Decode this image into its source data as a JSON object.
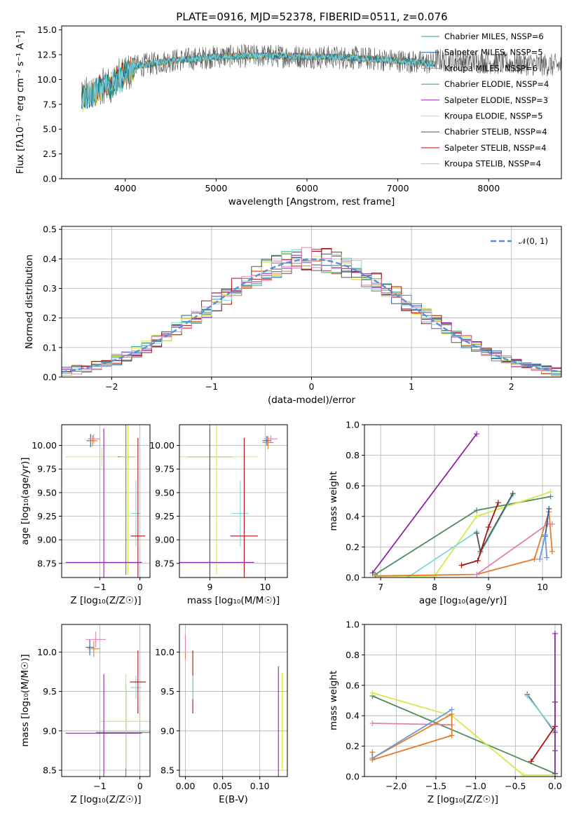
{
  "figure": {
    "title": "PLATE=0916, MJD=52378, FIBERID=0511, z=0.076"
  },
  "colors": {
    "Chabrier MILES": "#2a9d9d",
    "Salpeter MILES": "#1f5ea8",
    "Kroupa MILES": "#e37c2b",
    "Chabrier ELODIE": "#4f8b5e",
    "Salpeter ELODIE": "#8e24aa",
    "Kroupa ELODIE": "#d4ea4b",
    "Chabrier STELIB": "#555555",
    "Salpeter STELIB": "#aa1111",
    "Kroupa STELIB": "#7fd6dc",
    "gaussian": "#5b8fd6",
    "pink": "#e37fb0",
    "steelblue": "#6a9bd8"
  },
  "chart_data": [
    {
      "id": "spectrum",
      "type": "line",
      "title": "PLATE=0916, MJD=52378, FIBERID=0511, z=0.076",
      "xlabel": "wavelength [Angstrom, rest frame]",
      "ylabel": "Flux [fλ10⁻¹⁷ erg cm⁻² s⁻¹ A⁻¹]",
      "xlim": [
        3300,
        8800
      ],
      "ylim": [
        0,
        15.4
      ],
      "xticks": [
        "4000",
        "5000",
        "6000",
        "7000",
        "8000"
      ],
      "yticks": [
        "0.0",
        "2.5",
        "5.0",
        "7.5",
        "10.0",
        "12.5",
        "15.0"
      ],
      "legend_position": "right",
      "legend": [
        "Chabrier MILES, NSSP=6",
        "Salpeter MILES, NSSP=5",
        "Kroupa MILES, NSSP=6",
        "Chabrier ELODIE, NSSP=4",
        "Salpeter ELODIE, NSSP=3",
        "Kroupa ELODIE, NSSP=5",
        "Chabrier STELIB, NSSP=4",
        "Salpeter STELIB, NSSP=4",
        "Kroupa STELIB, NSSP=4"
      ],
      "continuum": {
        "x": [
          3550,
          3700,
          3900,
          4100,
          4500,
          5000,
          5500,
          6000,
          6500,
          7000,
          7400
        ],
        "y": [
          8.2,
          9.0,
          9.8,
          11.3,
          11.9,
          12.3,
          12.4,
          12.3,
          12.2,
          11.9,
          11.6
        ]
      }
    },
    {
      "id": "residuals",
      "type": "area",
      "xlabel": "(data-model)/error",
      "ylabel": "Normed distribution",
      "xlim": [
        -2.5,
        2.5
      ],
      "ylim": [
        0,
        0.51
      ],
      "xticks": [
        "−2",
        "−1",
        "0",
        "1",
        "2"
      ],
      "yticks": [
        "0.0",
        "0.1",
        "0.2",
        "0.3",
        "0.4",
        "0.5"
      ],
      "legend": [
        "𝒩(0, 1)"
      ],
      "legend_position": "top-right",
      "grid": true
    },
    {
      "id": "age_vs_Z",
      "type": "scatter",
      "xlabel": "Z [log₁₀(Z/Z☉)]",
      "ylabel": "age  [log₁₀(age/yr)]",
      "xlim": [
        -1.95,
        0.25
      ],
      "ylim": [
        8.6,
        10.22
      ],
      "xticks": [
        "−1",
        "0"
      ],
      "yticks": [
        "8.75",
        "9.00",
        "9.25",
        "9.50",
        "9.75",
        "10.00"
      ],
      "points": [
        {
          "x": -1.23,
          "y": 10.05,
          "xerr": 0.1,
          "yerr": 0.07,
          "color": "Salpeter MILES"
        },
        {
          "x": -1.15,
          "y": 10.07,
          "xerr": 0.15,
          "yerr": 0.05,
          "color": "pink"
        },
        {
          "x": -1.18,
          "y": 10.05,
          "xerr": 0.12,
          "yerr": 0.06,
          "color": "Kroupa MILES"
        },
        {
          "x": -0.95,
          "y": 9.88,
          "xerr": 0.9,
          "yerr": 0.1,
          "color": "Kroupa ELODIE"
        },
        {
          "x": -0.35,
          "y": 9.88,
          "xerr": 0.2,
          "yerr": 1.25,
          "color": "Chabrier ELODIE"
        },
        {
          "x": -0.3,
          "y": 9.88,
          "xerr": 0.2,
          "yerr": 1.25,
          "color": "Kroupa ELODIE"
        },
        {
          "x": -0.1,
          "y": 9.28,
          "xerr": 0.12,
          "yerr": 0.35,
          "color": "Kroupa STELIB"
        },
        {
          "x": -0.05,
          "y": 9.04,
          "xerr": 0.18,
          "yerr": 1.04,
          "color": "Salpeter STELIB"
        },
        {
          "x": -0.9,
          "y": 8.76,
          "xerr": 0.95,
          "yerr": 1.42,
          "color": "Salpeter ELODIE"
        }
      ]
    },
    {
      "id": "age_vs_mass",
      "type": "scatter",
      "xlabel": "mass [log₁₀(M/M☉)]",
      "ylabel": "",
      "xlim": [
        8.45,
        10.4
      ],
      "ylim": [
        8.6,
        10.22
      ],
      "xticks": [
        "9",
        "10"
      ],
      "yticks": [
        "8.75",
        "9.00",
        "9.25",
        "9.50",
        "9.75",
        "10.00"
      ],
      "points": [
        {
          "x": 10.03,
          "y": 10.05,
          "xerr": 0.08,
          "yerr": 0.05,
          "color": "Salpeter MILES"
        },
        {
          "x": 10.1,
          "y": 10.07,
          "xerr": 0.12,
          "yerr": 0.04,
          "color": "pink"
        },
        {
          "x": 10.05,
          "y": 10.03,
          "xerr": 0.1,
          "yerr": 0.07,
          "color": "Kroupa MILES"
        },
        {
          "x": 9.0,
          "y": 9.88,
          "xerr": 0.4,
          "yerr": 1.25,
          "color": "Chabrier ELODIE"
        },
        {
          "x": 9.12,
          "y": 9.88,
          "xerr": 0.75,
          "yerr": 1.25,
          "color": "Kroupa ELODIE"
        },
        {
          "x": 9.55,
          "y": 9.28,
          "xerr": 0.15,
          "yerr": 0.35,
          "color": "Kroupa STELIB"
        },
        {
          "x": 9.62,
          "y": 9.04,
          "xerr": 0.25,
          "yerr": 1.04,
          "color": "Salpeter STELIB"
        },
        {
          "x": 9.0,
          "y": 8.76,
          "xerr": 0.8,
          "yerr": 1.42,
          "color": "Salpeter ELODIE"
        }
      ]
    },
    {
      "id": "weight_vs_age",
      "type": "line",
      "xlabel": "age  [log₁₀(age/yr)]",
      "ylabel": "mass weight",
      "xlim": [
        6.7,
        10.35
      ],
      "ylim": [
        0,
        1
      ],
      "xticks": [
        "7",
        "8",
        "9",
        "10"
      ],
      "yticks": [
        "0.0",
        "0.2",
        "0.4",
        "0.6",
        "0.8",
        "1.0"
      ],
      "series": [
        {
          "color": "Salpeter ELODIE",
          "x": [
            6.85,
            8.78
          ],
          "y": [
            0.03,
            0.94
          ]
        },
        {
          "color": "Chabrier ELODIE",
          "x": [
            6.9,
            8.78,
            10.15
          ],
          "y": [
            0.02,
            0.44,
            0.53
          ]
        },
        {
          "color": "Kroupa ELODIE",
          "x": [
            6.9,
            8.0,
            8.78,
            10.15
          ],
          "y": [
            0.01,
            0.01,
            0.4,
            0.56
          ]
        },
        {
          "color": "Kroupa STELIB",
          "x": [
            7.5,
            8.78,
            8.85,
            9.45
          ],
          "y": [
            0.0,
            0.3,
            0.16,
            0.54
          ]
        },
        {
          "color": "Chabrier STELIB",
          "x": [
            8.78,
            8.85,
            9.45
          ],
          "y": [
            0.29,
            0.17,
            0.55
          ]
        },
        {
          "color": "Salpeter STELIB",
          "x": [
            8.5,
            8.8,
            9.0,
            9.18
          ],
          "y": [
            0.08,
            0.11,
            0.33,
            0.49
          ]
        },
        {
          "color": "Kroupa MILES",
          "x": [
            6.9,
            8.78,
            9.85,
            10.12,
            10.18
          ],
          "y": [
            0.01,
            0.02,
            0.12,
            0.43,
            0.17
          ]
        },
        {
          "color": "pink",
          "x": [
            8.78,
            10.1,
            10.18
          ],
          "y": [
            0.02,
            0.35,
            0.35
          ]
        },
        {
          "color": "Salpeter MILES",
          "x": [
            10.05,
            10.12
          ],
          "y": [
            0.27,
            0.45
          ]
        },
        {
          "color": "steelblue",
          "x": [
            9.95,
            10.05,
            10.08
          ],
          "y": [
            0.12,
            0.28,
            0.13
          ]
        }
      ]
    },
    {
      "id": "mass_vs_Z",
      "type": "scatter",
      "xlabel": "Z [log₁₀(Z/Z☉)]",
      "ylabel": "mass [log₁₀(M/M☉)]",
      "xlim": [
        -1.95,
        0.25
      ],
      "ylim": [
        8.42,
        10.35
      ],
      "xticks": [
        "−1",
        "0"
      ],
      "yticks": [
        "8.5",
        "9.0",
        "9.5",
        "10.0"
      ],
      "points": [
        {
          "x": -1.25,
          "y": 10.06,
          "xerr": 0.1,
          "yerr": 0.1,
          "color": "Salpeter MILES"
        },
        {
          "x": -1.1,
          "y": 10.16,
          "xerr": 0.25,
          "yerr": 0.1,
          "color": "pink"
        },
        {
          "x": -1.15,
          "y": 10.04,
          "xerr": 0.15,
          "yerr": 0.1,
          "color": "Kroupa MILES"
        },
        {
          "x": -0.35,
          "y": 8.98,
          "xerr": 0.75,
          "yerr": 0.6,
          "color": "Chabrier ELODIE"
        },
        {
          "x": -0.35,
          "y": 9.12,
          "xerr": 0.65,
          "yerr": 0.6,
          "color": "Kroupa ELODIE"
        },
        {
          "x": -0.1,
          "y": 9.55,
          "xerr": 0.13,
          "yerr": 0.15,
          "color": "Kroupa STELIB"
        },
        {
          "x": -0.05,
          "y": 9.62,
          "xerr": 0.2,
          "yerr": 0.4,
          "color": "Salpeter STELIB"
        },
        {
          "x": -0.9,
          "y": 8.97,
          "xerr": 0.95,
          "yerr": 0.75,
          "color": "Salpeter ELODIE"
        }
      ]
    },
    {
      "id": "mass_vs_ebv",
      "type": "scatter",
      "xlabel": "E(B-V)",
      "ylabel": "",
      "xlim": [
        -0.008,
        0.137
      ],
      "ylim": [
        8.42,
        10.35
      ],
      "xticks": [
        "0.00",
        "0.05",
        "0.10"
      ],
      "yticks": [
        "8.5",
        "9.0",
        "9.5",
        "10.0"
      ],
      "points": [
        {
          "x": 0.0,
          "y": 10.06,
          "xerr": 0.0,
          "yerr": 0.15,
          "color": "Kroupa MILES"
        },
        {
          "x": 0.0,
          "y": 10.1,
          "xerr": 0.0,
          "yerr": 0.12,
          "color": "pink"
        },
        {
          "x": 0.01,
          "y": 9.62,
          "xerr": 0.0,
          "yerr": 0.4,
          "color": "Salpeter STELIB"
        },
        {
          "x": 0.01,
          "y": 9.55,
          "xerr": 0.0,
          "yerr": 0.15,
          "color": "Kroupa STELIB"
        },
        {
          "x": 0.125,
          "y": 9.1,
          "xerr": 0.0,
          "yerr": 0.72,
          "color": "Salpeter ELODIE"
        },
        {
          "x": 0.13,
          "y": 9.12,
          "xerr": 0.0,
          "yerr": 0.62,
          "color": "Kroupa ELODIE"
        }
      ]
    },
    {
      "id": "weight_vs_Z",
      "type": "line",
      "xlabel": "Z [log₁₀(Z/Z☉)]",
      "ylabel": "mass weight",
      "xlim": [
        -2.4,
        0.08
      ],
      "ylim": [
        0,
        1
      ],
      "xticks": [
        "−2.0",
        "−1.5",
        "−1.0",
        "−0.5",
        "0.0"
      ],
      "yticks": [
        "0.0",
        "0.2",
        "0.4",
        "0.6",
        "0.8",
        "1.0"
      ],
      "grid": true,
      "series": [
        {
          "color": "Chabrier ELODIE",
          "x": [
            -2.3,
            0.0
          ],
          "y": [
            0.53,
            0.02
          ]
        },
        {
          "color": "Kroupa ELODIE",
          "x": [
            -2.3,
            -1.3,
            -0.4,
            0.0
          ],
          "y": [
            0.55,
            0.4,
            0.01,
            0.01
          ]
        },
        {
          "color": "pink",
          "x": [
            -2.3,
            -1.3
          ],
          "y": [
            0.35,
            0.34
          ]
        },
        {
          "color": "Kroupa MILES",
          "x": [
            -2.3,
            -1.3,
            -1.3,
            -2.3,
            -2.3
          ],
          "y": [
            0.12,
            0.41,
            0.27,
            0.11,
            0.16
          ]
        },
        {
          "color": "steelblue",
          "x": [
            -2.3,
            -1.3
          ],
          "y": [
            0.12,
            0.44
          ]
        },
        {
          "color": "Chabrier STELIB",
          "x": [
            -0.35,
            0.0,
            0.0
          ],
          "y": [
            0.54,
            0.29,
            0.17
          ]
        },
        {
          "color": "Kroupa STELIB",
          "x": [
            -0.35,
            0.0,
            0.0
          ],
          "y": [
            0.53,
            0.3,
            0.0
          ]
        },
        {
          "color": "Salpeter STELIB",
          "x": [
            -0.3,
            0.0,
            0.0
          ],
          "y": [
            0.1,
            0.33,
            0.49
          ]
        },
        {
          "color": "Salpeter ELODIE",
          "x": [
            0.0,
            0.0
          ],
          "y": [
            0.94,
            0.02
          ]
        }
      ]
    }
  ]
}
